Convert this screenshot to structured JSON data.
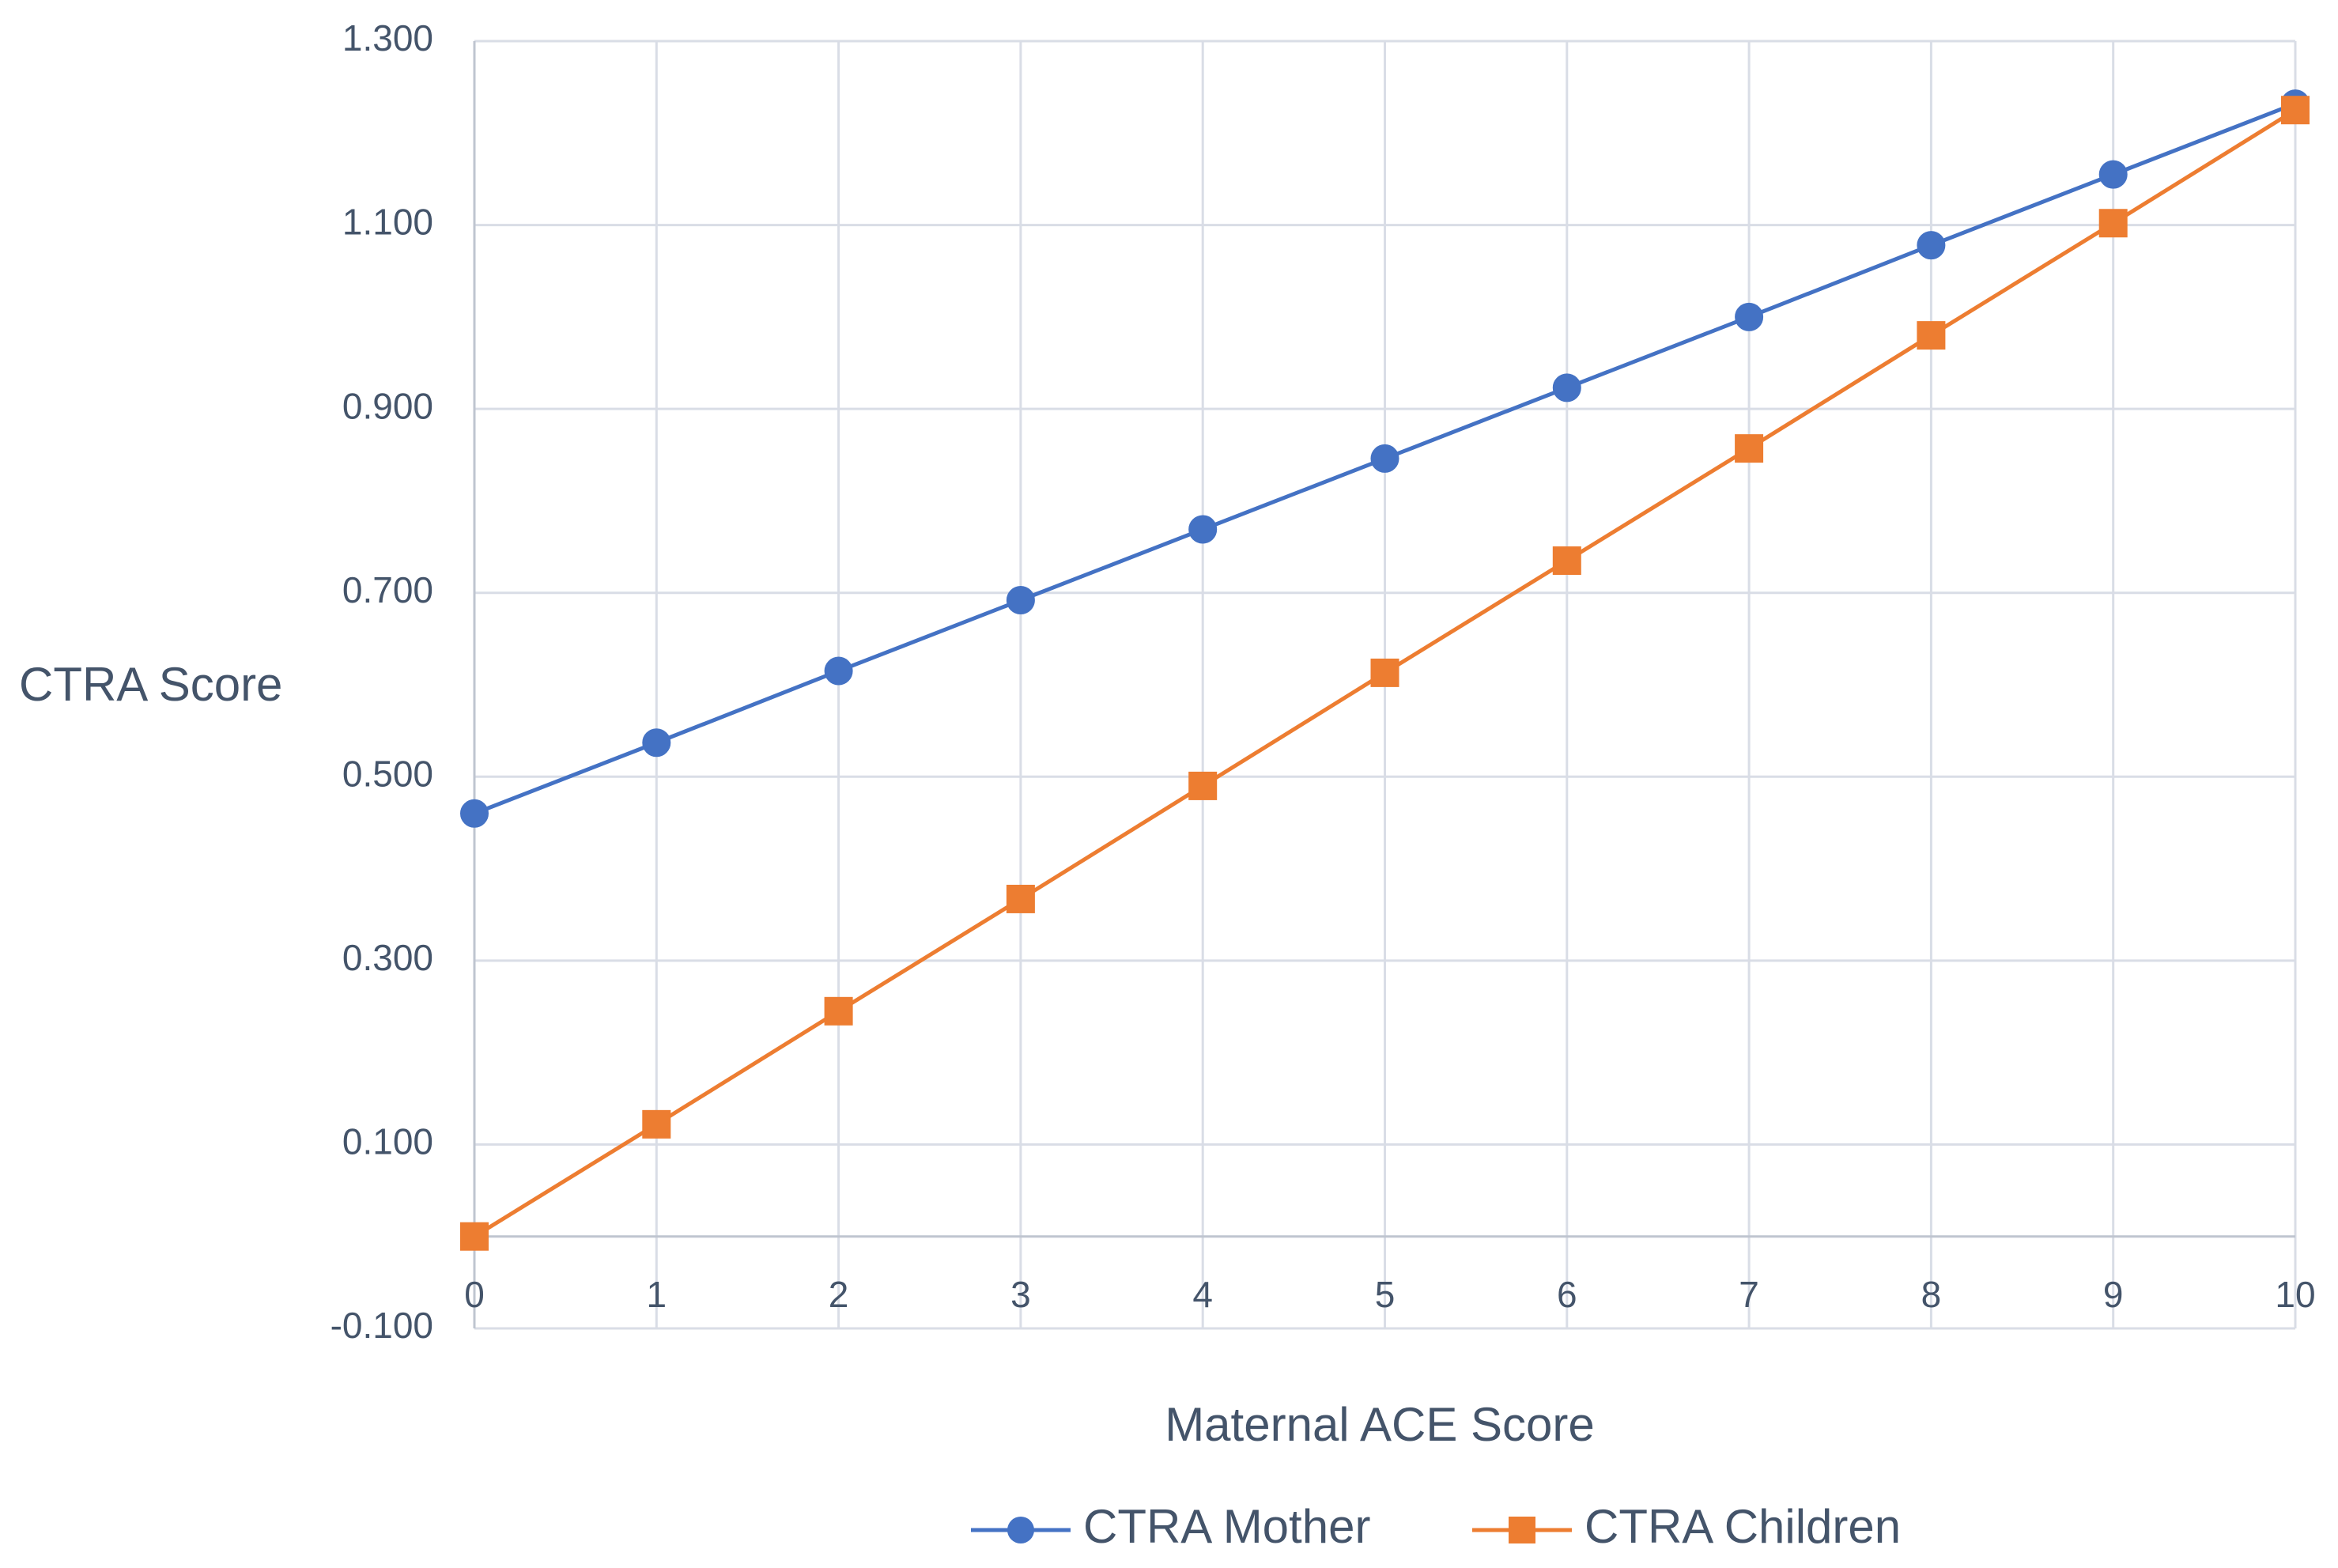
{
  "chart_data": {
    "type": "line",
    "title": "",
    "xlabel": "Maternal ACE Score",
    "ylabel": "CTRA Score",
    "x": [
      0,
      1,
      2,
      3,
      4,
      5,
      6,
      7,
      8,
      9,
      10
    ],
    "x_tick_labels": [
      "0",
      "1",
      "2",
      "3",
      "4",
      "5",
      "6",
      "7",
      "8",
      "9",
      "10"
    ],
    "y_tick_labels": [
      "1.300",
      "1.100",
      "0.900",
      "0.700",
      "0.500",
      "0.300",
      "0.100",
      "-0.100"
    ],
    "y_ticks": [
      1.3,
      1.1,
      0.9,
      0.7,
      0.5,
      0.3,
      0.1,
      -0.1
    ],
    "ylim": [
      -0.1,
      1.3
    ],
    "xlim": [
      0,
      10
    ],
    "x_axis_crosses_at": 0,
    "grid": true,
    "legend_position": "bottom",
    "series": [
      {
        "name": "CTRA Mother",
        "color": "#4472c4",
        "marker": "circle",
        "values": [
          0.46,
          0.537,
          0.615,
          0.692,
          0.769,
          0.846,
          0.923,
          1.0,
          1.078,
          1.155,
          1.232
        ]
      },
      {
        "name": "CTRA Children",
        "color": "#ed7d31",
        "marker": "square",
        "values": [
          0.0,
          0.122,
          0.245,
          0.367,
          0.49,
          0.613,
          0.735,
          0.857,
          0.98,
          1.102,
          1.225
        ]
      }
    ]
  }
}
